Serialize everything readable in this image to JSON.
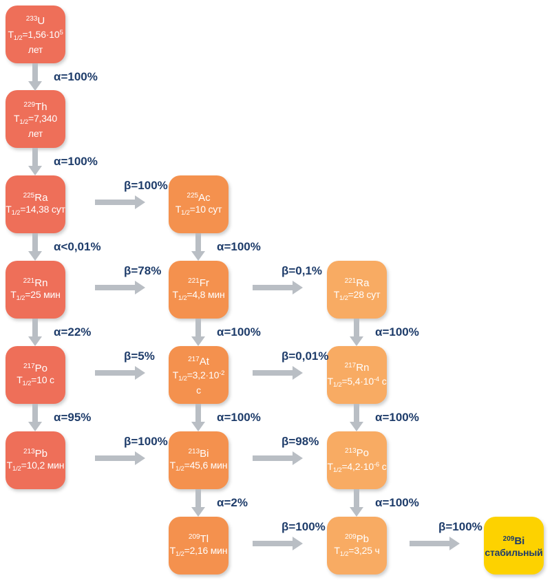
{
  "diagram": {
    "type": "radioactive-decay-chain",
    "colors": {
      "column1_box": "#ee6f59",
      "column2_box": "#f4914e",
      "column3_box": "#f8ab63",
      "stable_box": "#fdd200",
      "box_text": "#ffffff",
      "label_text": "#1e3c6a",
      "arrow": "#b9bec4",
      "background": "#ffffff"
    },
    "labels": {
      "t": "T",
      "t_sub": "1/2"
    },
    "nodes": {
      "u233": {
        "mass": "233",
        "symbol": "U",
        "hl_mid": "=1,56·10",
        "hl_sup": "5",
        "hl_post": "",
        "line3": "лет"
      },
      "th229": {
        "mass": "229",
        "symbol": "Th",
        "hl_mid": "=7,340",
        "hl_sup": "",
        "hl_post": "",
        "line3": "лет"
      },
      "ra225": {
        "mass": "225",
        "symbol": "Ra",
        "hl_mid": "=14,38 сут",
        "hl_sup": "",
        "hl_post": ""
      },
      "rn221": {
        "mass": "221",
        "symbol": "Rn",
        "hl_mid": "=25 мин",
        "hl_sup": "",
        "hl_post": ""
      },
      "po217": {
        "mass": "217",
        "symbol": "Po",
        "hl_mid": "=10 с",
        "hl_sup": "",
        "hl_post": ""
      },
      "pb213": {
        "mass": "213",
        "symbol": "Pb",
        "hl_mid": "=10,2 мин",
        "hl_sup": "",
        "hl_post": ""
      },
      "ac225": {
        "mass": "225",
        "symbol": "Ac",
        "hl_mid": "=10 сут",
        "hl_sup": "",
        "hl_post": ""
      },
      "fr221": {
        "mass": "221",
        "symbol": "Fr",
        "hl_mid": "=4,8 мин",
        "hl_sup": "",
        "hl_post": ""
      },
      "at217": {
        "mass": "217",
        "symbol": "At",
        "hl_mid": "=3,2·10",
        "hl_sup": "-2",
        "hl_post": "",
        "line3": "с"
      },
      "bi213": {
        "mass": "213",
        "symbol": "Bi",
        "hl_mid": "=45,6 мин",
        "hl_sup": "",
        "hl_post": ""
      },
      "tl209": {
        "mass": "209",
        "symbol": "Tl",
        "hl_mid": "=2,16 мин",
        "hl_sup": "",
        "hl_post": ""
      },
      "ra221": {
        "mass": "221",
        "symbol": "Ra",
        "hl_mid": "=28 сут",
        "hl_sup": "",
        "hl_post": ""
      },
      "rn217": {
        "mass": "217",
        "symbol": "Rn",
        "hl_mid": "=5,4·10",
        "hl_sup": "-4",
        "hl_post": " с"
      },
      "po213": {
        "mass": "213",
        "symbol": "Po",
        "hl_mid": "=4,2·10",
        "hl_sup": "-6",
        "hl_post": " с"
      },
      "pb209": {
        "mass": "209",
        "symbol": "Pb",
        "hl_mid": "=3,25 ч",
        "hl_sup": "",
        "hl_post": ""
      },
      "bi209": {
        "mass": "209",
        "symbol": "Bi",
        "status": "стабильный"
      }
    },
    "arrows": {
      "v1": {
        "label": "α=100%"
      },
      "v2": {
        "label": "α=100%"
      },
      "v3": {
        "label": "α<0,01%"
      },
      "v4": {
        "label": "α=22%"
      },
      "v5": {
        "label": "α=95%"
      },
      "v6": {
        "label": "α=100%"
      },
      "v7": {
        "label": "α=100%"
      },
      "v8": {
        "label": "α=100%"
      },
      "v9": {
        "label": "α=2%"
      },
      "v10": {
        "label": "α=100%"
      },
      "v11": {
        "label": "α=100%"
      },
      "v12": {
        "label": "α=100%"
      },
      "h1": {
        "label": "β=100%"
      },
      "h2": {
        "label": "β=78%"
      },
      "h3": {
        "label": "β=5%"
      },
      "h4": {
        "label": "β=100%"
      },
      "h5": {
        "label": "β=0,1%"
      },
      "h6": {
        "label": "β=0,01%"
      },
      "h7": {
        "label": "β=98%"
      },
      "h8": {
        "label": "β=100%"
      },
      "h9": {
        "label": "β=100%"
      }
    }
  }
}
